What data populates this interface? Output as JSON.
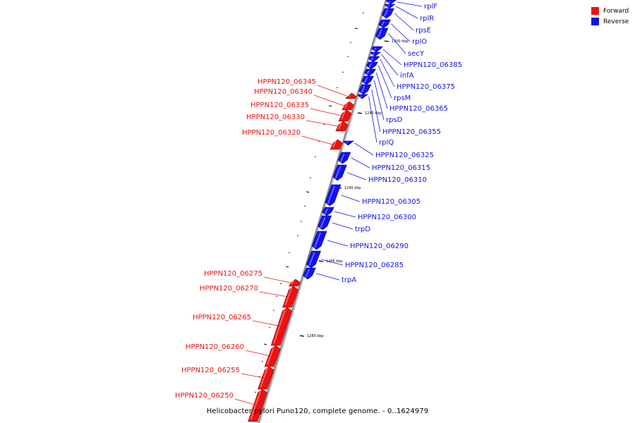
{
  "colors": {
    "forward": "#ee1111",
    "reverse": "#1111ee",
    "backbone": "#888888"
  },
  "legend": [
    {
      "label": "Forward",
      "color": "#ee1111"
    },
    {
      "label": "Reverse",
      "color": "#1111ee"
    }
  ],
  "caption": "Helicobacter pylori Puno120, complete genome. - 0..1624979",
  "ticks": [
    {
      "label": "1300 kbp"
    },
    {
      "label": "1295 kbp"
    },
    {
      "label": "1290 kbp"
    },
    {
      "label": "1285 kbp"
    },
    {
      "label": "1280 kbp"
    }
  ],
  "genes_reverse": [
    {
      "name": "rplF"
    },
    {
      "name": "rplR"
    },
    {
      "name": "rpsE"
    },
    {
      "name": "rplO"
    },
    {
      "name": "secY"
    },
    {
      "name": "HPPN120_06385"
    },
    {
      "name": "infA"
    },
    {
      "name": "HPPN120_06375"
    },
    {
      "name": "rpsM"
    },
    {
      "name": "HPPN120_06365"
    },
    {
      "name": "rpsD"
    },
    {
      "name": "HPPN120_06355"
    },
    {
      "name": "rplQ"
    },
    {
      "name": "HPPN120_06325"
    },
    {
      "name": "HPPN120_06315"
    },
    {
      "name": "HPPN120_06310"
    },
    {
      "name": "HPPN120_06305"
    },
    {
      "name": "HPPN120_06300"
    },
    {
      "name": "trpD"
    },
    {
      "name": "HPPN120_06290"
    },
    {
      "name": "HPPN120_06285"
    },
    {
      "name": "trpA"
    }
  ],
  "genes_forward": [
    {
      "name": "HPPN120_06345"
    },
    {
      "name": "HPPN120_06340"
    },
    {
      "name": "HPPN120_06335"
    },
    {
      "name": "HPPN120_06330"
    },
    {
      "name": "HPPN120_06320"
    },
    {
      "name": "HPPN120_06275"
    },
    {
      "name": "HPPN120_06270"
    },
    {
      "name": "HPPN120_06265"
    },
    {
      "name": "HPPN120_06260"
    },
    {
      "name": "HPPN120_06255"
    },
    {
      "name": "HPPN120_06250"
    }
  ]
}
